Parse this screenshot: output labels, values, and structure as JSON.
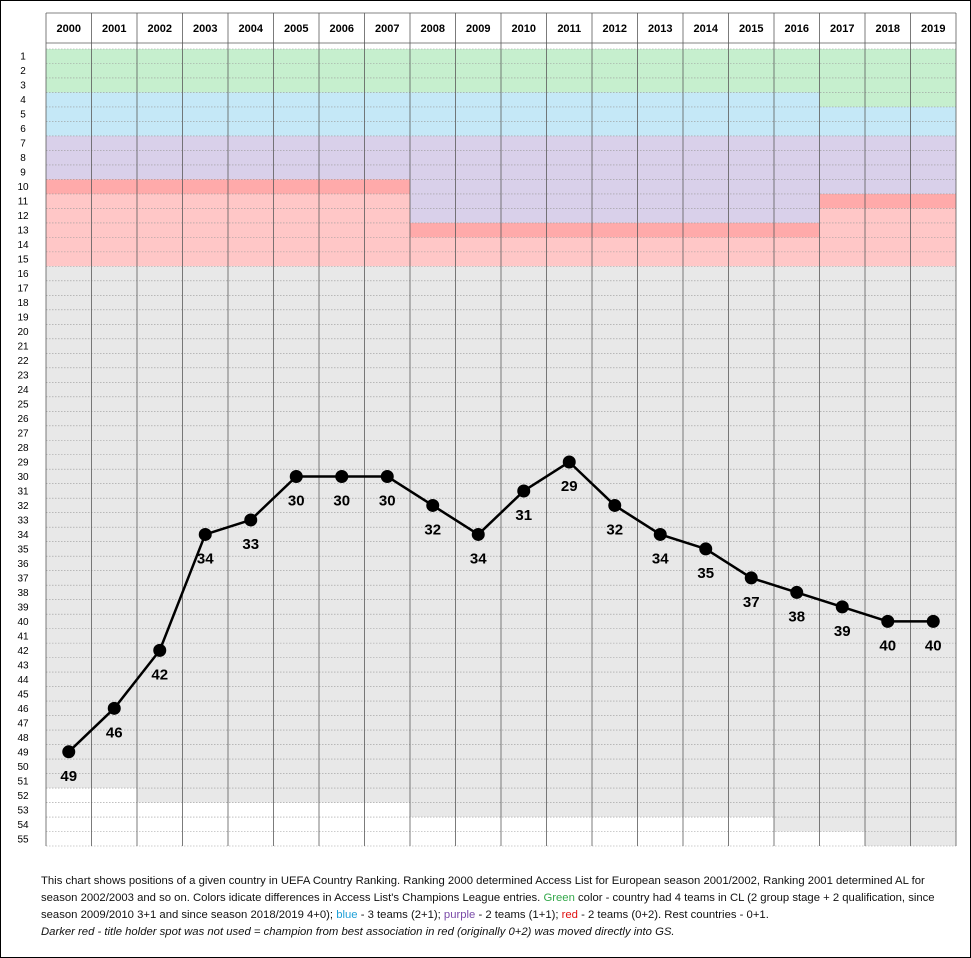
{
  "chart_data": {
    "type": "line",
    "x": [
      "2000",
      "2001",
      "2002",
      "2003",
      "2004",
      "2005",
      "2006",
      "2007",
      "2008",
      "2009",
      "2010",
      "2011",
      "2012",
      "2013",
      "2014",
      "2015",
      "2016",
      "2017",
      "2018",
      "2019"
    ],
    "series": [
      {
        "values": [
          49,
          46,
          42,
          34,
          33,
          30,
          30,
          30,
          32,
          34,
          31,
          29,
          32,
          34,
          35,
          37,
          38,
          39,
          40,
          40
        ]
      }
    ],
    "data_labels": [
      "49",
      "46",
      "42",
      "34",
      "33",
      "30",
      "30",
      "30",
      "32",
      "34",
      "31",
      "29",
      "32",
      "34",
      "35",
      "37",
      "38",
      "39",
      "40",
      "40"
    ],
    "y_ticks": [
      "1",
      "2",
      "3",
      "4",
      "5",
      "6",
      "7",
      "8",
      "9",
      "10",
      "11",
      "12",
      "13",
      "14",
      "15",
      "16",
      "17",
      "18",
      "19",
      "20",
      "21",
      "22",
      "23",
      "24",
      "25",
      "26",
      "27",
      "28",
      "29",
      "30",
      "31",
      "32",
      "33",
      "34",
      "35",
      "36",
      "37",
      "38",
      "39",
      "40",
      "41",
      "42",
      "43",
      "44",
      "45",
      "46",
      "47",
      "48",
      "49",
      "50",
      "51",
      "52",
      "53",
      "54",
      "55"
    ],
    "ylim": [
      1,
      55
    ],
    "y_inverted": true,
    "grid": true,
    "x_axis_position": "top",
    "bands": [
      {
        "color": "#c6efce",
        "segments": [
          {
            "from_year": "2000",
            "to_year": "2016",
            "from_rank": 1,
            "to_rank": 3
          },
          {
            "from_year": "2017",
            "to_year": "2019",
            "from_rank": 1,
            "to_rank": 4
          }
        ]
      },
      {
        "color": "#c5e8f7",
        "segments": [
          {
            "from_year": "2000",
            "to_year": "2016",
            "from_rank": 4,
            "to_rank": 6
          },
          {
            "from_year": "2017",
            "to_year": "2019",
            "from_rank": 5,
            "to_rank": 6
          }
        ]
      },
      {
        "color": "#d9d0ea",
        "segments": [
          {
            "from_year": "2000",
            "to_year": "2007",
            "from_rank": 7,
            "to_rank": 9
          },
          {
            "from_year": "2008",
            "to_year": "2016",
            "from_rank": 7,
            "to_rank": 12
          },
          {
            "from_year": "2017",
            "to_year": "2019",
            "from_rank": 7,
            "to_rank": 10
          }
        ]
      },
      {
        "color": "#ffc7c7",
        "segments": [
          {
            "from_year": "2000",
            "to_year": "2007",
            "from_rank": 10,
            "to_rank": 15
          },
          {
            "from_year": "2008",
            "to_year": "2016",
            "from_rank": 13,
            "to_rank": 15
          },
          {
            "from_year": "2017",
            "to_year": "2019",
            "from_rank": 12,
            "to_rank": 15
          }
        ]
      },
      {
        "color": "#ffaaaa",
        "segments": [
          {
            "from_year": "2000",
            "to_year": "2007",
            "from_rank": 10,
            "to_rank": 10
          },
          {
            "from_year": "2008",
            "to_year": "2016",
            "from_rank": 13,
            "to_rank": 13
          },
          {
            "from_year": "2017",
            "to_year": "2019",
            "from_rank": 11,
            "to_rank": 11
          }
        ]
      },
      {
        "color": "#e8e8e8",
        "segments": [
          {
            "from_year": "2000",
            "to_year": "2001",
            "from_rank": 16,
            "to_rank": 51
          },
          {
            "from_year": "2002",
            "to_year": "2007",
            "from_rank": 16,
            "to_rank": 52
          },
          {
            "from_year": "2008",
            "to_year": "2015",
            "from_rank": 16,
            "to_rank": 53
          },
          {
            "from_year": "2016",
            "to_year": "2017",
            "from_rank": 16,
            "to_rank": 54
          },
          {
            "from_year": "2018",
            "to_year": "2019",
            "from_rank": 16,
            "to_rank": 55
          }
        ]
      }
    ]
  },
  "caption": {
    "line1": "This chart shows positions of a given country in  UEFA Country Ranking. Ranking 2000 determined Access List for European season 2001/2002, Ranking 2001 determined AL for season 2002/2003 and so on.  Colors idicate differences in Access List's Champions League entries. ",
    "green_word": " Green",
    "after_green": " color - country had 4 teams in CL (2 group stage + 2 qualification, since season 2009/2010 3+1 and since season 2018/2019  4+0); ",
    "blue_word": "blue",
    "after_blue": " - 3 teams  (2+1); ",
    "purple_word": "purple",
    "after_purple": " - 2 teams (1+1); ",
    "red_word": "red",
    "after_red": " - 2 teams (0+2). Rest countries - 0+1.",
    "note": "Darker red - title holder spot was not used = champion from best association in red (originally 0+2) was moved directly into GS."
  }
}
